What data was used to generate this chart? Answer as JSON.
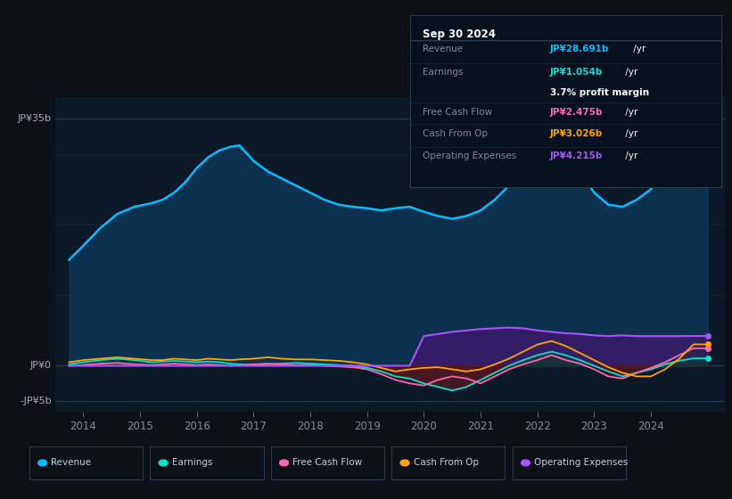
{
  "background_color": "#0d1117",
  "plot_bg_color": "#0b1929",
  "title": "Sep 30 2024",
  "ylabel_35b": "JP¥35b",
  "ylabel_0": "JP¥0",
  "ylabel_neg5b": "-JP¥5b",
  "ylim": [
    -6.5,
    38
  ],
  "xlim": [
    2013.5,
    2025.3
  ],
  "xticks": [
    2014,
    2015,
    2016,
    2017,
    2018,
    2019,
    2020,
    2021,
    2022,
    2023,
    2024
  ],
  "revenue_color": "#00bfff",
  "earnings_color": "#00e5cc",
  "fcf_color": "#ff69b4",
  "cashfromop_color": "#ffa500",
  "opex_color": "#a855f7",
  "revenue_fill_color": "#0d3a5c",
  "opex_fill_color": "#3b1a6b",
  "earnings_neg_fill": "#5a1a1a",
  "earnings_pos_fill": "#0d3030",
  "legend_items": [
    {
      "label": "Revenue",
      "color": "#00bfff"
    },
    {
      "label": "Earnings",
      "color": "#00e5cc"
    },
    {
      "label": "Free Cash Flow",
      "color": "#ff69b4"
    },
    {
      "label": "Cash From Op",
      "color": "#ffa500"
    },
    {
      "label": "Operating Expenses",
      "color": "#a855f7"
    }
  ],
  "tooltip": {
    "date": "Sep 30 2024",
    "Revenue": "JP¥28.691b",
    "Earnings": "JP¥1.054b",
    "profit_margin": "3.7%",
    "FreeCashFlow": "JP¥2.475b",
    "CashFromOp": "JP¥3.026b",
    "OperatingExpenses": "JP¥4.215b",
    "revenue_color": "#00bfff",
    "earnings_color": "#00e5cc",
    "fcf_color": "#ff69b4",
    "cashop_color": "#ffa500",
    "opex_color": "#a855f7"
  },
  "revenue_x": [
    2013.75,
    2014.0,
    2014.3,
    2014.6,
    2014.9,
    2015.2,
    2015.4,
    2015.6,
    2015.8,
    2016.0,
    2016.2,
    2016.4,
    2016.6,
    2016.75,
    2017.0,
    2017.25,
    2017.5,
    2017.75,
    2018.0,
    2018.25,
    2018.5,
    2018.75,
    2019.0,
    2019.25,
    2019.5,
    2019.75,
    2020.0,
    2020.25,
    2020.5,
    2020.75,
    2021.0,
    2021.25,
    2021.5,
    2021.75,
    2022.0,
    2022.25,
    2022.5,
    2022.75,
    2023.0,
    2023.25,
    2023.5,
    2023.75,
    2024.0,
    2024.25,
    2024.5,
    2024.75,
    2025.0
  ],
  "revenue_y": [
    15.0,
    17.0,
    19.5,
    21.5,
    22.5,
    23.0,
    23.5,
    24.5,
    26.0,
    28.0,
    29.5,
    30.5,
    31.0,
    31.2,
    29.0,
    27.5,
    26.5,
    25.5,
    24.5,
    23.5,
    22.8,
    22.5,
    22.3,
    22.0,
    22.3,
    22.5,
    21.8,
    21.2,
    20.8,
    21.2,
    22.0,
    23.5,
    25.5,
    27.5,
    29.5,
    30.5,
    29.5,
    27.5,
    24.5,
    22.8,
    22.5,
    23.5,
    25.0,
    27.0,
    28.0,
    28.7,
    28.7
  ],
  "earnings_x": [
    2013.75,
    2014.0,
    2014.3,
    2014.6,
    2014.9,
    2015.2,
    2015.4,
    2015.6,
    2015.8,
    2016.0,
    2016.2,
    2016.4,
    2016.6,
    2016.75,
    2017.0,
    2017.25,
    2017.5,
    2017.75,
    2018.0,
    2018.25,
    2018.5,
    2018.75,
    2019.0,
    2019.25,
    2019.5,
    2019.75,
    2020.0,
    2020.25,
    2020.5,
    2020.75,
    2021.0,
    2021.25,
    2021.5,
    2021.75,
    2022.0,
    2022.25,
    2022.5,
    2022.75,
    2023.0,
    2023.25,
    2023.5,
    2023.75,
    2024.0,
    2024.25,
    2024.5,
    2024.75,
    2025.0
  ],
  "earnings_y": [
    0.2,
    0.5,
    0.8,
    1.0,
    0.8,
    0.5,
    0.6,
    0.7,
    0.6,
    0.5,
    0.6,
    0.5,
    0.3,
    0.2,
    0.1,
    0.2,
    0.3,
    0.4,
    0.3,
    0.2,
    0.1,
    0.0,
    -0.3,
    -0.8,
    -1.5,
    -1.8,
    -2.5,
    -3.0,
    -3.5,
    -3.0,
    -2.0,
    -1.0,
    0.0,
    0.8,
    1.5,
    2.0,
    1.5,
    0.8,
    0.0,
    -0.8,
    -1.5,
    -1.0,
    -0.5,
    0.2,
    0.7,
    1.054,
    1.054
  ],
  "fcf_x": [
    2013.75,
    2014.0,
    2014.3,
    2014.6,
    2014.9,
    2015.2,
    2015.4,
    2015.6,
    2015.8,
    2016.0,
    2016.2,
    2016.4,
    2016.6,
    2016.75,
    2017.0,
    2017.25,
    2017.5,
    2017.75,
    2018.0,
    2018.25,
    2018.5,
    2018.75,
    2019.0,
    2019.25,
    2019.5,
    2019.75,
    2020.0,
    2020.25,
    2020.5,
    2020.75,
    2021.0,
    2021.25,
    2021.5,
    2021.75,
    2022.0,
    2022.25,
    2022.5,
    2022.75,
    2023.0,
    2023.25,
    2023.5,
    2023.75,
    2024.0,
    2024.25,
    2024.5,
    2024.75,
    2025.0
  ],
  "fcf_y": [
    0.0,
    0.1,
    0.3,
    0.4,
    0.2,
    0.1,
    0.2,
    0.3,
    0.2,
    0.1,
    0.2,
    0.1,
    0.0,
    0.1,
    0.2,
    0.3,
    0.2,
    0.1,
    0.1,
    0.0,
    -0.1,
    -0.2,
    -0.5,
    -1.2,
    -2.0,
    -2.5,
    -2.8,
    -2.0,
    -1.5,
    -1.8,
    -2.5,
    -1.5,
    -0.5,
    0.2,
    0.8,
    1.5,
    0.8,
    0.3,
    -0.5,
    -1.5,
    -1.8,
    -1.0,
    -0.3,
    0.5,
    1.5,
    2.475,
    2.475
  ],
  "cashfromop_x": [
    2013.75,
    2014.0,
    2014.3,
    2014.6,
    2014.9,
    2015.2,
    2015.4,
    2015.6,
    2015.8,
    2016.0,
    2016.2,
    2016.4,
    2016.6,
    2016.75,
    2017.0,
    2017.25,
    2017.5,
    2017.75,
    2018.0,
    2018.25,
    2018.5,
    2018.75,
    2019.0,
    2019.25,
    2019.5,
    2019.75,
    2020.0,
    2020.25,
    2020.5,
    2020.75,
    2021.0,
    2021.25,
    2021.5,
    2021.75,
    2022.0,
    2022.25,
    2022.5,
    2022.75,
    2023.0,
    2023.25,
    2023.5,
    2023.75,
    2024.0,
    2024.25,
    2024.5,
    2024.75,
    2025.0
  ],
  "cashfromop_y": [
    0.5,
    0.8,
    1.0,
    1.2,
    1.0,
    0.8,
    0.8,
    1.0,
    0.9,
    0.8,
    1.0,
    0.9,
    0.8,
    0.9,
    1.0,
    1.2,
    1.0,
    0.9,
    0.9,
    0.8,
    0.7,
    0.5,
    0.2,
    -0.3,
    -0.8,
    -0.5,
    -0.3,
    -0.2,
    -0.5,
    -0.8,
    -0.5,
    0.2,
    1.0,
    2.0,
    3.0,
    3.5,
    2.8,
    1.8,
    0.8,
    -0.2,
    -1.0,
    -1.5,
    -1.5,
    -0.5,
    1.0,
    3.026,
    3.026
  ],
  "opex_x": [
    2013.75,
    2014.0,
    2014.3,
    2014.6,
    2014.9,
    2015.2,
    2015.4,
    2015.6,
    2015.8,
    2016.0,
    2016.2,
    2016.4,
    2016.6,
    2016.75,
    2017.0,
    2017.25,
    2017.5,
    2017.75,
    2018.0,
    2018.25,
    2018.5,
    2018.75,
    2019.0,
    2019.25,
    2019.5,
    2019.75,
    2020.0,
    2020.25,
    2020.5,
    2020.75,
    2021.0,
    2021.25,
    2021.5,
    2021.75,
    2022.0,
    2022.25,
    2022.5,
    2022.75,
    2023.0,
    2023.25,
    2023.5,
    2023.75,
    2024.0,
    2024.25,
    2024.5,
    2024.75,
    2025.0
  ],
  "opex_y": [
    0.0,
    0.0,
    0.0,
    0.0,
    0.0,
    0.0,
    0.0,
    0.0,
    0.0,
    0.0,
    0.0,
    0.0,
    0.0,
    0.0,
    0.0,
    0.0,
    0.0,
    0.0,
    0.0,
    0.0,
    0.0,
    0.0,
    0.0,
    0.0,
    0.0,
    0.0,
    4.2,
    4.5,
    4.8,
    5.0,
    5.2,
    5.3,
    5.4,
    5.3,
    5.0,
    4.8,
    4.6,
    4.5,
    4.3,
    4.2,
    4.3,
    4.2,
    4.2,
    4.2,
    4.2,
    4.215,
    4.215
  ]
}
